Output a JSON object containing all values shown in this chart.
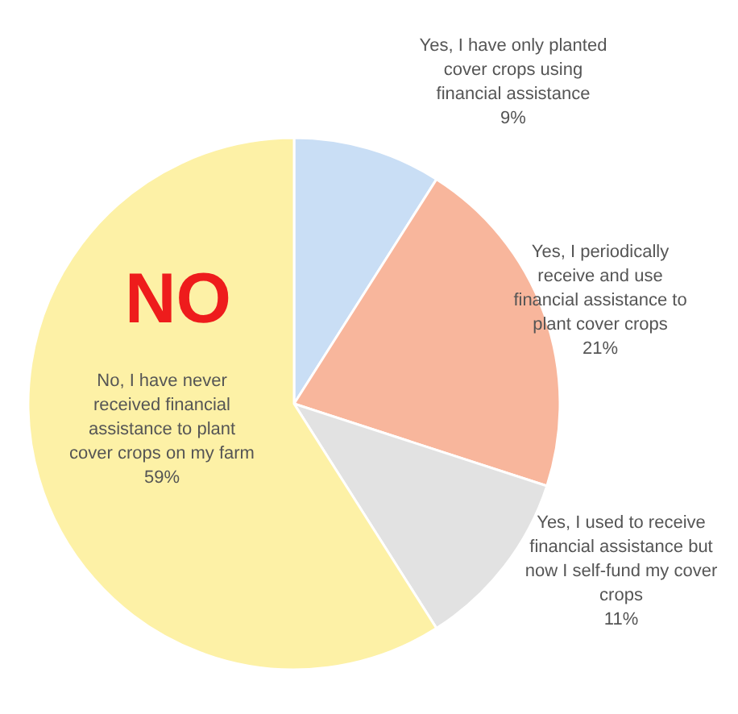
{
  "chart_data": {
    "type": "pie",
    "categories": [
      "Yes, I have only planted cover crops using financial assistance",
      "Yes, I periodically receive and use financial assistance to plant cover crops",
      "Yes, I used to receive financial assistance but now I self-fund my cover crops",
      "No, I have never received financial assistance to plant cover crops on my farm"
    ],
    "values": [
      9,
      21,
      11,
      59
    ],
    "colors": [
      "#c9def5",
      "#f8b69c",
      "#e2e2e2",
      "#fdf1a6"
    ],
    "value_labels": [
      "9%",
      "21%",
      "11%",
      "59%"
    ],
    "annotations": [
      {
        "text": "NO"
      }
    ]
  }
}
